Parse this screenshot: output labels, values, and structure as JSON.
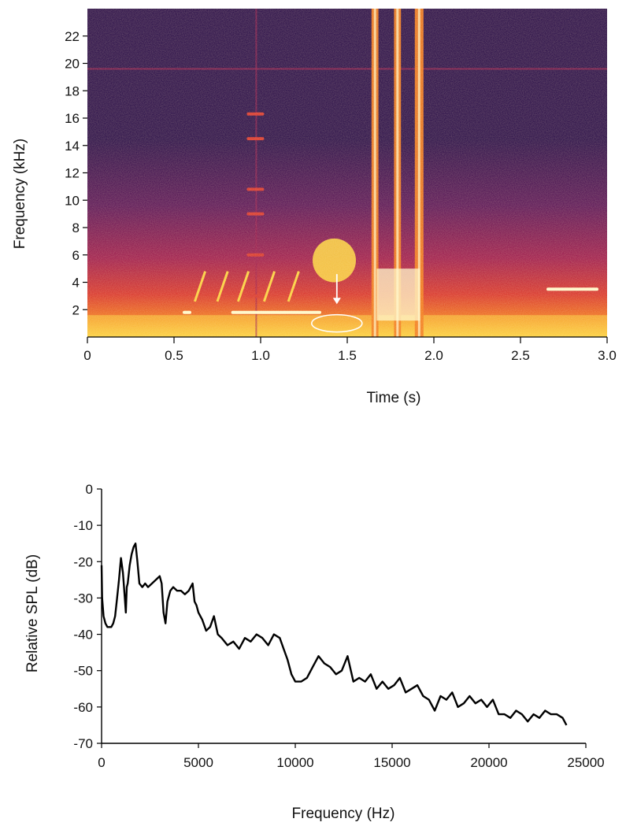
{
  "chart_data": [
    {
      "type": "heatmap",
      "title": "",
      "xlabel": "Time (s)",
      "ylabel": "Frequency (kHz)",
      "xlim": [
        0,
        3.0
      ],
      "ylim": [
        0,
        24
      ],
      "xticks": [
        "0",
        "0.5",
        "1.0",
        "1.5",
        "2.0",
        "2.5",
        "3.0"
      ],
      "xtick_values": [
        0,
        0.5,
        1.0,
        1.5,
        2.0,
        2.5,
        3.0
      ],
      "yticks": [
        "2",
        "4",
        "6",
        "8",
        "10",
        "12",
        "14",
        "16",
        "18",
        "20",
        "22"
      ],
      "ytick_values": [
        2,
        4,
        6,
        8,
        10,
        12,
        14,
        16,
        18,
        20,
        22
      ],
      "colormap": [
        "#2a0e4a",
        "#5a1458",
        "#9e1b4e",
        "#d8352d",
        "#f27a1e",
        "#fbd140",
        "#fffbd0"
      ],
      "events": [
        {
          "name": "tone",
          "t": [
            0.55,
            0.6
          ],
          "f": 1.8
        },
        {
          "name": "tone",
          "t": [
            0.83,
            1.35
          ],
          "f": 1.8
        },
        {
          "name": "harmonics",
          "t": [
            0.86,
            1.0
          ],
          "f": [
            3,
            6,
            9,
            10.8,
            14.5,
            16.3
          ]
        },
        {
          "name": "burst",
          "t": [
            1.3,
            1.55
          ],
          "f": [
            4,
            7.2
          ]
        },
        {
          "name": "broadband",
          "t": [
            1.64,
            1.68
          ]
        },
        {
          "name": "broadband",
          "t": [
            1.77,
            1.81
          ]
        },
        {
          "name": "broadband",
          "t": [
            1.89,
            1.94
          ]
        },
        {
          "name": "tone",
          "t": [
            2.65,
            2.95
          ],
          "f": 3.5
        }
      ],
      "annotations": [
        {
          "type": "ellipse",
          "t": 1.44,
          "f": 1.0
        },
        {
          "type": "arrow",
          "t": 1.44,
          "f_from": 4.6,
          "f_to": 2.4
        }
      ]
    },
    {
      "type": "line",
      "title": "",
      "xlabel": "Frequency (Hz)",
      "ylabel": "Relative SPL (dB)",
      "xlim": [
        0,
        25000
      ],
      "ylim": [
        -70,
        0
      ],
      "xticks": [
        "0",
        "5000",
        "10000",
        "15000",
        "20000",
        "25000"
      ],
      "xtick_values": [
        0,
        5000,
        10000,
        15000,
        20000,
        25000
      ],
      "yticks": [
        "0",
        "-10",
        "-20",
        "-30",
        "-40",
        "-50",
        "-60",
        "-70"
      ],
      "ytick_values": [
        0,
        -10,
        -20,
        -30,
        -40,
        -50,
        -60,
        -70
      ],
      "series": [
        {
          "x": [
            0,
            30,
            100,
            200,
            300,
            400,
            500,
            600,
            700,
            800,
            900,
            1000,
            1100,
            1200,
            1250,
            1300,
            1350,
            1450,
            1550,
            1650,
            1750,
            1850,
            1950,
            2100,
            2250,
            2400,
            2600,
            2800,
            3000,
            3100,
            3200,
            3300,
            3400,
            3550,
            3700,
            3900,
            4100,
            4300,
            4500,
            4600,
            4700,
            4800,
            4900,
            5000,
            5200,
            5400,
            5600,
            5800,
            6000,
            6200,
            6500,
            6800,
            7100,
            7400,
            7700,
            8000,
            8300,
            8600,
            8900,
            9200,
            9400,
            9600,
            9800,
            10000,
            10300,
            10600,
            10900,
            11200,
            11500,
            11800,
            12100,
            12400,
            12700,
            13000,
            13300,
            13600,
            13900,
            14200,
            14500,
            14800,
            15100,
            15400,
            15700,
            16000,
            16300,
            16600,
            16900,
            17200,
            17500,
            17800,
            18100,
            18400,
            18700,
            19000,
            19300,
            19600,
            19900,
            20200,
            20500,
            20800,
            21100,
            21400,
            21700,
            22000,
            22300,
            22600,
            22900,
            23200,
            23500,
            23800,
            24000
          ],
          "values": [
            -21,
            -30,
            -35,
            -37,
            -38,
            -38,
            -38,
            -37,
            -35,
            -30,
            -25,
            -19,
            -23,
            -30,
            -34,
            -27,
            -26,
            -21,
            -18,
            -16,
            -15,
            -20,
            -26,
            -27,
            -26,
            -27,
            -26,
            -25,
            -24,
            -26,
            -34,
            -37,
            -31,
            -28,
            -27,
            -28,
            -28,
            -29,
            -28,
            -27,
            -26,
            -31,
            -32,
            -34,
            -36,
            -39,
            -38,
            -35,
            -40,
            -41,
            -43,
            -42,
            -44,
            -41,
            -42,
            -40,
            -41,
            -43,
            -40,
            -41,
            -44,
            -47,
            -51,
            -53,
            -53,
            -52,
            -49,
            -46,
            -48,
            -49,
            -51,
            -50,
            -46,
            -53,
            -52,
            -53,
            -51,
            -55,
            -53,
            -55,
            -54,
            -52,
            -56,
            -55,
            -54,
            -57,
            -58,
            -61,
            -57,
            -58,
            -56,
            -60,
            -59,
            -57,
            -59,
            -58,
            -60,
            -58,
            -62,
            -62,
            -63,
            -61,
            -62,
            -64,
            -62,
            -63,
            -61,
            -62,
            -62,
            -63,
            -65
          ]
        }
      ]
    }
  ]
}
